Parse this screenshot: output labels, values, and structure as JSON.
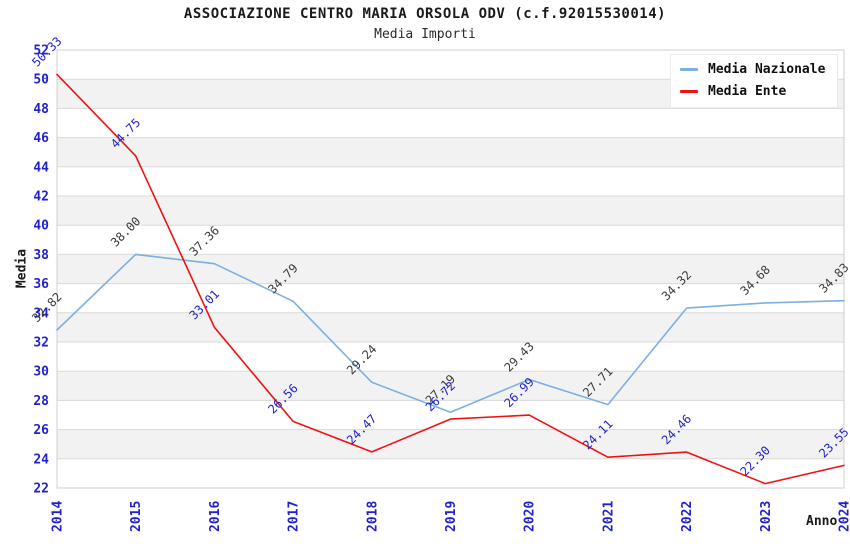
{
  "chart_data": {
    "type": "line",
    "title": "ASSOCIAZIONE CENTRO MARIA ORSOLA ODV (c.f.92015530014)",
    "subtitle": "Media Importi",
    "xlabel": "Anno",
    "ylabel": "Media",
    "x": [
      2014,
      2015,
      2016,
      2017,
      2018,
      2019,
      2020,
      2021,
      2022,
      2023,
      2024
    ],
    "ylim": [
      22,
      52
    ],
    "ytick_step": 2,
    "grid": "horizontal-bands-alternating",
    "legend_position": "top-right",
    "series": [
      {
        "name": "Media Nazionale",
        "color": "#7dafe2",
        "label_color": "#3c3c3c",
        "values": [
          32.82,
          38.0,
          37.36,
          34.79,
          29.24,
          27.19,
          29.43,
          27.71,
          34.32,
          34.68,
          34.83
        ]
      },
      {
        "name": "Media Ente",
        "color": "#ef1212",
        "label_color": "#2323c8",
        "values": [
          50.33,
          44.75,
          33.01,
          26.56,
          24.47,
          26.72,
          26.99,
          24.11,
          24.46,
          22.3,
          23.55
        ]
      }
    ],
    "styles": {
      "tick_color": "#2222cc",
      "band_color": "#f2f2f2",
      "grid_color": "#dadada",
      "border_color": "#cfcfcf",
      "axis_text_color": "#1a1a1a"
    }
  }
}
